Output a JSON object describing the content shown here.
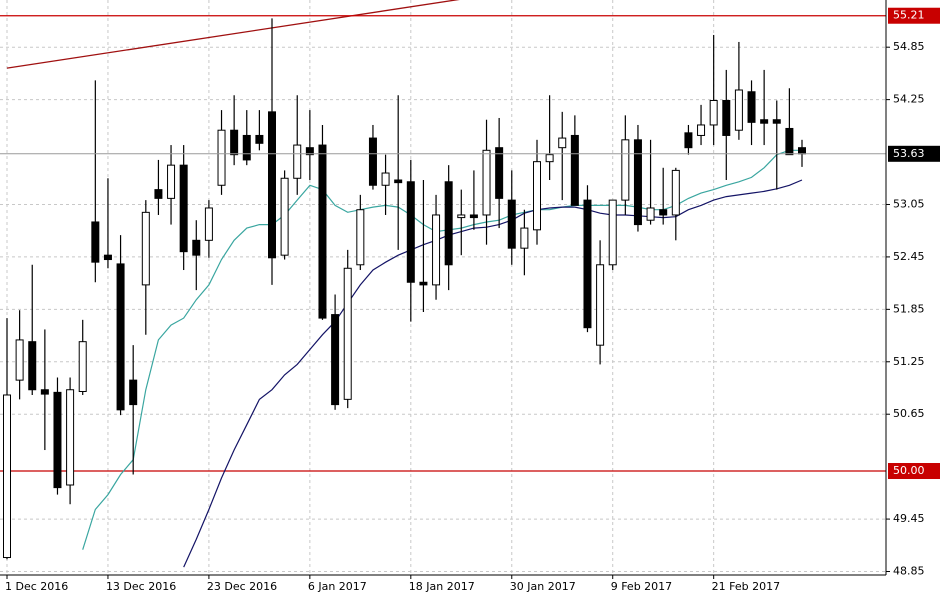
{
  "chart_data": {
    "type": "candlestick",
    "categories": [
      "1 Dec 2016",
      null,
      null,
      null,
      null,
      null,
      null,
      null,
      "13 Dec 2016",
      null,
      null,
      null,
      null,
      null,
      null,
      null,
      "23 Dec 2016",
      null,
      null,
      null,
      null,
      null,
      null,
      null,
      "6 Jan 2017",
      null,
      null,
      null,
      null,
      null,
      null,
      null,
      "18 Jan 2017",
      null,
      null,
      null,
      null,
      null,
      null,
      null,
      "30 Jan 2017",
      null,
      null,
      null,
      null,
      null,
      null,
      null,
      "9 Feb 2017",
      null,
      null,
      null,
      null,
      null,
      null,
      null,
      "21 Feb 2017",
      null,
      null,
      null,
      null,
      null,
      null,
      null
    ],
    "open": [
      49.01,
      51.04,
      51.48,
      50.93,
      50.9,
      49.84,
      50.91,
      52.85,
      52.47,
      52.37,
      51.04,
      52.13,
      53.22,
      53.12,
      53.5,
      52.64,
      52.64,
      53.27,
      53.9,
      53.84,
      53.84,
      54.11,
      52.47,
      53.35,
      53.7,
      53.73,
      51.79,
      50.82,
      52.36,
      53.81,
      53.27,
      53.33,
      53.31,
      52.16,
      52.13,
      53.31,
      52.9,
      52.93,
      52.93,
      53.7,
      53.1,
      52.55,
      52.76,
      53.54,
      53.7,
      53.84,
      53.1,
      51.44,
      52.36,
      53.1,
      53.79,
      52.87,
      52.99,
      52.93,
      53.87,
      53.84,
      53.96,
      54.24,
      53.9,
      54.34,
      54.02,
      54.02,
      53.92,
      53.7
    ],
    "high": [
      51.75,
      51.84,
      52.36,
      51.62,
      51.07,
      51.07,
      51.73,
      54.47,
      53.35,
      52.7,
      51.44,
      53.1,
      53.56,
      53.73,
      53.73,
      52.87,
      53.1,
      54.13,
      54.3,
      54.13,
      54.13,
      55.18,
      53.44,
      54.3,
      54.13,
      53.96,
      52.02,
      52.53,
      53.16,
      53.96,
      53.62,
      54.3,
      53.56,
      53.33,
      53.16,
      53.5,
      53.22,
      53.44,
      54.02,
      54.04,
      53.44,
      52.99,
      53.79,
      54.3,
      54.11,
      54.07,
      53.27,
      52.64,
      53.1,
      54.07,
      53.96,
      53.79,
      53.47,
      53.47,
      53.96,
      54.19,
      54.99,
      54.59,
      54.91,
      54.47,
      54.59,
      54.24,
      54.38,
      53.79
    ],
    "low": [
      48.99,
      50.82,
      50.87,
      50.24,
      49.73,
      49.62,
      50.87,
      52.16,
      52.32,
      50.64,
      49.96,
      51.56,
      52.93,
      52.82,
      52.3,
      52.07,
      52.44,
      53.16,
      53.5,
      53.5,
      53.67,
      52.13,
      52.42,
      53.16,
      53.33,
      51.73,
      50.7,
      50.72,
      52.3,
      53.22,
      52.93,
      52.53,
      51.71,
      51.82,
      51.96,
      52.07,
      52.47,
      52.76,
      52.59,
      52.78,
      52.36,
      52.24,
      52.59,
      53.33,
      53.1,
      53.04,
      51.59,
      51.22,
      52.3,
      52.93,
      52.74,
      52.82,
      52.82,
      52.64,
      53.62,
      53.73,
      53.73,
      53.33,
      53.79,
      53.73,
      53.73,
      53.22,
      53.62,
      53.48
    ],
    "close": [
      50.87,
      51.5,
      50.93,
      50.88,
      49.81,
      50.93,
      51.48,
      52.39,
      52.42,
      50.7,
      50.76,
      52.96,
      53.12,
      53.5,
      52.51,
      52.47,
      53.01,
      53.9,
      53.62,
      53.56,
      53.75,
      52.44,
      53.35,
      53.73,
      53.62,
      51.75,
      50.76,
      52.32,
      52.99,
      53.27,
      53.41,
      53.3,
      52.16,
      52.13,
      52.93,
      52.36,
      52.93,
      52.9,
      53.67,
      53.12,
      52.55,
      52.78,
      53.54,
      53.62,
      53.81,
      53.04,
      51.64,
      52.36,
      53.1,
      53.79,
      52.82,
      53.01,
      52.93,
      53.44,
      53.7,
      53.96,
      54.24,
      53.84,
      54.36,
      53.99,
      53.98,
      53.98,
      53.62,
      53.63
    ],
    "lines": [
      {
        "color": "#3aa6a0",
        "values": [
          null,
          null,
          null,
          null,
          null,
          null,
          49.1,
          49.56,
          49.73,
          49.96,
          50.13,
          50.93,
          51.5,
          51.67,
          51.75,
          51.96,
          52.13,
          52.42,
          52.64,
          52.78,
          52.82,
          52.82,
          52.93,
          53.1,
          53.27,
          53.22,
          53.04,
          52.96,
          52.99,
          53.02,
          53.04,
          53.02,
          52.93,
          52.82,
          52.74,
          52.76,
          52.78,
          52.82,
          52.85,
          52.87,
          52.93,
          52.96,
          52.99,
          52.99,
          53.02,
          53.04,
          53.04,
          53.04,
          53.04,
          53.04,
          53.02,
          52.99,
          52.99,
          53.04,
          53.12,
          53.18,
          53.22,
          53.27,
          53.31,
          53.36,
          53.47,
          53.62,
          53.67,
          53.67
        ]
      },
      {
        "color": "#141466",
        "values": [
          null,
          null,
          null,
          null,
          null,
          null,
          null,
          null,
          null,
          null,
          null,
          null,
          null,
          null,
          48.9,
          49.22,
          49.56,
          49.92,
          50.24,
          50.53,
          50.82,
          50.93,
          51.1,
          51.22,
          51.39,
          51.56,
          51.71,
          51.92,
          52.13,
          52.3,
          52.39,
          52.47,
          52.53,
          52.59,
          52.64,
          52.7,
          52.74,
          52.78,
          52.79,
          52.82,
          52.87,
          52.95,
          52.99,
          53.01,
          53.02,
          53.02,
          52.99,
          52.95,
          52.93,
          52.93,
          52.92,
          52.91,
          52.9,
          52.91,
          52.99,
          53.04,
          53.1,
          53.14,
          53.16,
          53.18,
          53.2,
          53.23,
          53.27,
          53.33
        ]
      }
    ],
    "trendline": {
      "color": "#a01010",
      "points": [
        [
          0,
          54.61
        ],
        [
          36,
          55.4
        ]
      ]
    },
    "levels": [
      {
        "value": 55.21,
        "label": "55.21"
      },
      {
        "value": 50.0,
        "label": "50.00"
      }
    ],
    "level_color": "#c80000",
    "current_price": 53.63,
    "ylim": [
      48.81,
      55.39
    ],
    "yticks": [
      48.85,
      49.45,
      50.65,
      51.25,
      51.85,
      52.45,
      53.05,
      54.25,
      54.85
    ],
    "grid": true
  }
}
